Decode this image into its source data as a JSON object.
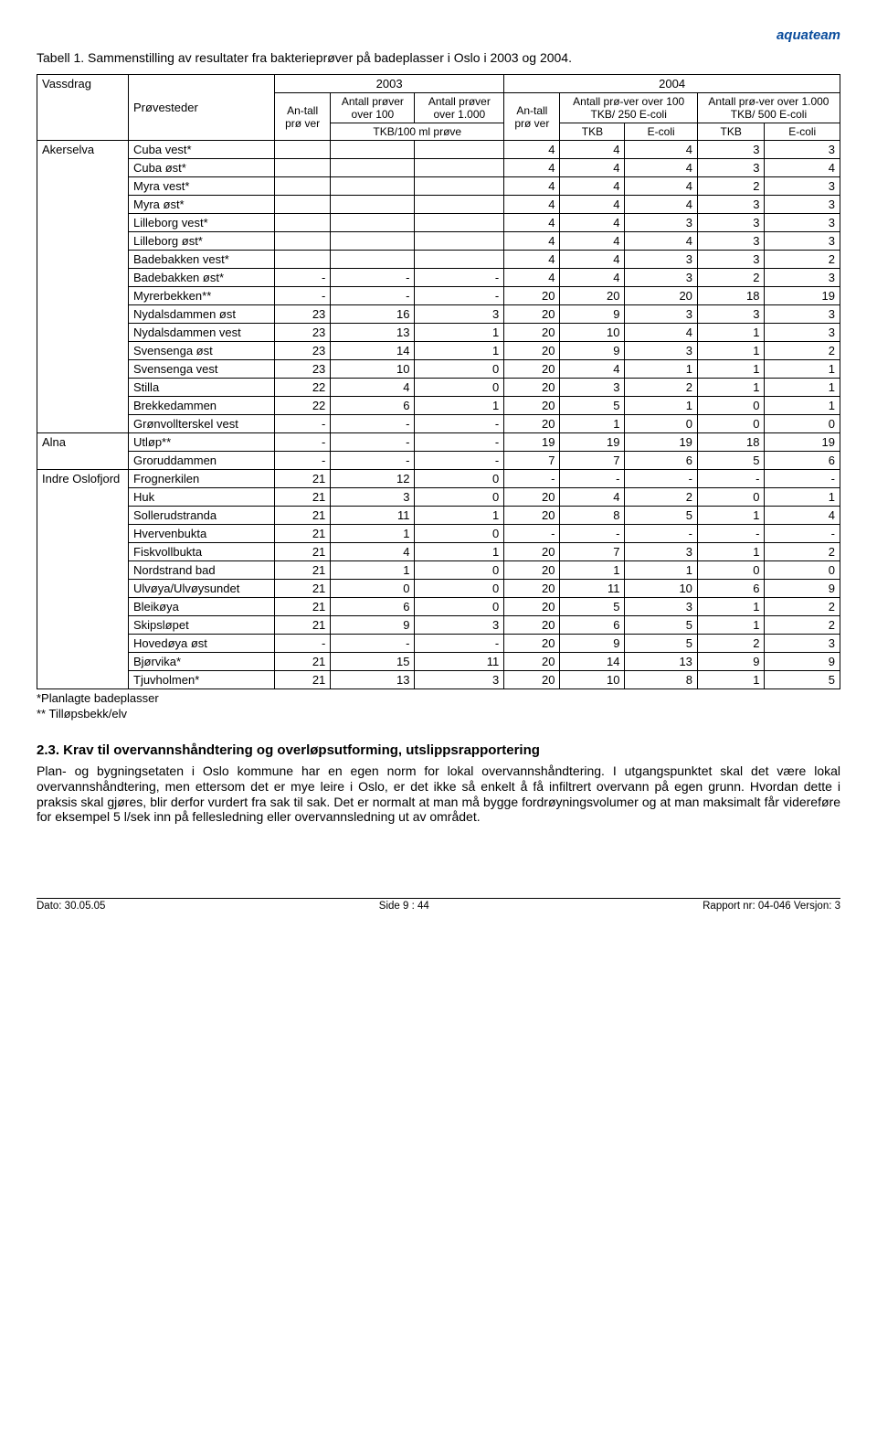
{
  "brand": "aquateam",
  "caption": "Tabell 1. Sammenstilling av resultater fra bakterieprøver på badeplasser i Oslo i 2003 og 2004.",
  "header": {
    "vassdrag": "Vassdrag",
    "provesteder": "Prøvesteder",
    "y2003": "2003",
    "y2004": "2004",
    "antall_prover_2003": "An-tall prø ver",
    "over100": "Antall prøver over 100",
    "over1000": "Antall prøver over 1.000",
    "tkb100": "TKB/100 ml prøve",
    "antall_prover_2004": "An-tall prø ver",
    "col2004a": "Antall prø-ver over 100 TKB/ 250 E-coli",
    "col2004b": "Antall prø-ver over 1.000 TKB/ 500 E-coli",
    "tkb": "TKB",
    "ecoli": "E-coli"
  },
  "groups": [
    {
      "name": "Akerselva",
      "rows": [
        {
          "p": "Cuba vest*",
          "a": "",
          "b": "",
          "c": "",
          "d": "4",
          "e": "4",
          "f": "4",
          "g": "3",
          "h": "3"
        },
        {
          "p": "Cuba øst*",
          "a": "",
          "b": "",
          "c": "",
          "d": "4",
          "e": "4",
          "f": "4",
          "g": "3",
          "h": "4"
        },
        {
          "p": "Myra vest*",
          "a": "",
          "b": "",
          "c": "",
          "d": "4",
          "e": "4",
          "f": "4",
          "g": "2",
          "h": "3"
        },
        {
          "p": "Myra øst*",
          "a": "",
          "b": "",
          "c": "",
          "d": "4",
          "e": "4",
          "f": "4",
          "g": "3",
          "h": "3"
        },
        {
          "p": "Lilleborg vest*",
          "a": "",
          "b": "",
          "c": "",
          "d": "4",
          "e": "4",
          "f": "3",
          "g": "3",
          "h": "3"
        },
        {
          "p": "Lilleborg øst*",
          "a": "",
          "b": "",
          "c": "",
          "d": "4",
          "e": "4",
          "f": "4",
          "g": "3",
          "h": "3"
        },
        {
          "p": "Badebakken vest*",
          "a": "",
          "b": "",
          "c": "",
          "d": "4",
          "e": "4",
          "f": "3",
          "g": "3",
          "h": "2"
        },
        {
          "p": "Badebakken øst*",
          "a": "-",
          "b": "-",
          "c": "-",
          "d": "4",
          "e": "4",
          "f": "3",
          "g": "2",
          "h": "3"
        },
        {
          "p": "Myrerbekken**",
          "a": "-",
          "b": "-",
          "c": "-",
          "d": "20",
          "e": "20",
          "f": "20",
          "g": "18",
          "h": "19"
        },
        {
          "p": "Nydalsdammen øst",
          "a": "23",
          "b": "16",
          "c": "3",
          "d": "20",
          "e": "9",
          "f": "3",
          "g": "3",
          "h": "3"
        },
        {
          "p": "Nydalsdammen vest",
          "a": "23",
          "b": "13",
          "c": "1",
          "d": "20",
          "e": "10",
          "f": "4",
          "g": "1",
          "h": "3"
        },
        {
          "p": "Svensenga øst",
          "a": "23",
          "b": "14",
          "c": "1",
          "d": "20",
          "e": "9",
          "f": "3",
          "g": "1",
          "h": "2"
        },
        {
          "p": "Svensenga vest",
          "a": "23",
          "b": "10",
          "c": "0",
          "d": "20",
          "e": "4",
          "f": "1",
          "g": "1",
          "h": "1"
        },
        {
          "p": "Stilla",
          "a": "22",
          "b": "4",
          "c": "0",
          "d": "20",
          "e": "3",
          "f": "2",
          "g": "1",
          "h": "1"
        },
        {
          "p": "Brekkedammen",
          "a": "22",
          "b": "6",
          "c": "1",
          "d": "20",
          "e": "5",
          "f": "1",
          "g": "0",
          "h": "1"
        },
        {
          "p": "Grønvollterskel vest",
          "a": "-",
          "b": "-",
          "c": "-",
          "d": "20",
          "e": "1",
          "f": "0",
          "g": "0",
          "h": "0"
        }
      ]
    },
    {
      "name": "Alna",
      "rows": [
        {
          "p": "Utløp**",
          "a": "-",
          "b": "-",
          "c": "-",
          "d": "19",
          "e": "19",
          "f": "19",
          "g": "18",
          "h": "19"
        },
        {
          "p": "Groruddammen",
          "a": "-",
          "b": "-",
          "c": "-",
          "d": "7",
          "e": "7",
          "f": "6",
          "g": "5",
          "h": "6"
        }
      ]
    },
    {
      "name": "Indre Oslofjord",
      "rows": [
        {
          "p": "Frognerkilen",
          "a": "21",
          "b": "12",
          "c": "0",
          "d": "-",
          "e": "-",
          "f": "-",
          "g": "-",
          "h": "-"
        },
        {
          "p": "Huk",
          "a": "21",
          "b": "3",
          "c": "0",
          "d": "20",
          "e": "4",
          "f": "2",
          "g": "0",
          "h": "1"
        },
        {
          "p": "Sollerudstranda",
          "a": "21",
          "b": "11",
          "c": "1",
          "d": "20",
          "e": "8",
          "f": "5",
          "g": "1",
          "h": "4"
        },
        {
          "p": "Hvervenbukta",
          "a": "21",
          "b": "1",
          "c": "0",
          "d": "-",
          "e": "-",
          "f": "-",
          "g": "-",
          "h": "-"
        },
        {
          "p": "Fiskvollbukta",
          "a": "21",
          "b": "4",
          "c": "1",
          "d": "20",
          "e": "7",
          "f": "3",
          "g": "1",
          "h": "2"
        },
        {
          "p": "Nordstrand bad",
          "a": "21",
          "b": "1",
          "c": "0",
          "d": "20",
          "e": "1",
          "f": "1",
          "g": "0",
          "h": "0"
        },
        {
          "p": "Ulvøya/Ulvøysundet",
          "a": "21",
          "b": "0",
          "c": "0",
          "d": "20",
          "e": "11",
          "f": "10",
          "g": "6",
          "h": "9"
        },
        {
          "p": "Bleikøya",
          "a": "21",
          "b": "6",
          "c": "0",
          "d": "20",
          "e": "5",
          "f": "3",
          "g": "1",
          "h": "2"
        },
        {
          "p": "Skipsløpet",
          "a": "21",
          "b": "9",
          "c": "3",
          "d": "20",
          "e": "6",
          "f": "5",
          "g": "1",
          "h": "2"
        },
        {
          "p": "Hovedøya øst",
          "a": "-",
          "b": "-",
          "c": "-",
          "d": "20",
          "e": "9",
          "f": "5",
          "g": "2",
          "h": "3"
        },
        {
          "p": "Bjørvika*",
          "a": "21",
          "b": "15",
          "c": "11",
          "d": "20",
          "e": "14",
          "f": "13",
          "g": "9",
          "h": "9"
        },
        {
          "p": "Tjuvholmen*",
          "a": "21",
          "b": "13",
          "c": "3",
          "d": "20",
          "e": "10",
          "f": "8",
          "g": "1",
          "h": "5"
        }
      ]
    }
  ],
  "footnotes": [
    "*Planlagte badeplasser",
    "** Tilløpsbekk/elv"
  ],
  "section": {
    "heading": "2.3.  Krav til overvannshåndtering og overløpsutforming, utslippsrapportering",
    "body": "Plan- og bygningsetaten i Oslo kommune har en egen norm for lokal overvannshåndtering. I utgangspunktet skal det være lokal overvannshåndtering, men ettersom det er mye leire i Oslo, er det ikke så enkelt å få infiltrert overvann på egen grunn. Hvordan dette i praksis skal gjøres, blir derfor vurdert fra sak til sak. Det er normalt at man må bygge fordrøyningsvolumer og at man maksimalt får videreføre for eksempel 5 l/sek inn på fellesledning eller overvannsledning ut av området."
  },
  "footer": {
    "left": "Dato: 30.05.05",
    "mid": "Side 9 : 44",
    "right": "Rapport nr: 04-046  Versjon: 3"
  }
}
